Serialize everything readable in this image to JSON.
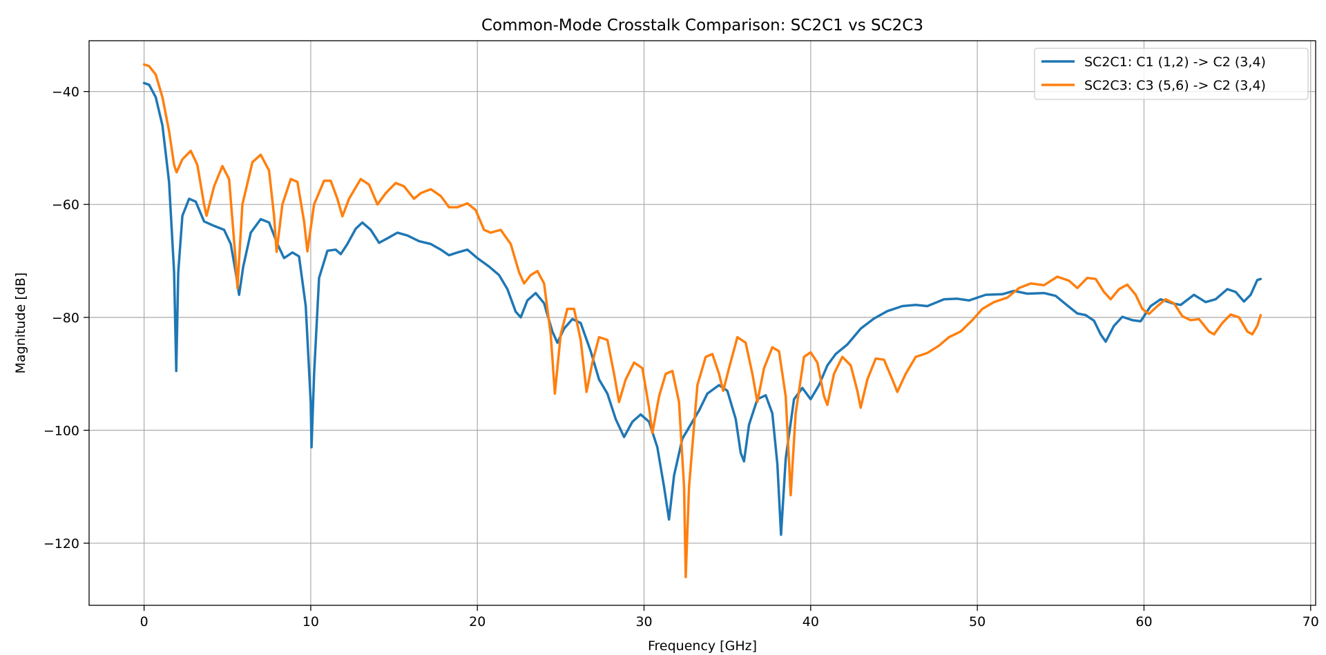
{
  "chart_data": {
    "type": "line",
    "title": "Common-Mode Crosstalk Comparison: SC2C1 vs SC2C3",
    "xlabel": "Frequency [GHz]",
    "ylabel": "Magnitude [dB]",
    "xlim": [
      -3.3,
      70.3
    ],
    "ylim": [
      -131,
      -31
    ],
    "xticks": [
      0,
      10,
      20,
      30,
      40,
      50,
      60,
      70
    ],
    "yticks": [
      -40,
      -60,
      -80,
      -100,
      -120
    ],
    "grid": true,
    "legend_position": "top-right",
    "series": [
      {
        "name": "SC2C1: C1 (1,2) -> C2 (3,4)",
        "color": "#1f77b4",
        "points": [
          [
            0,
            -38.5
          ],
          [
            0.3,
            -38.8
          ],
          [
            0.7,
            -41
          ],
          [
            1.1,
            -46
          ],
          [
            1.5,
            -56
          ],
          [
            1.8,
            -72
          ],
          [
            1.93,
            -89.5
          ],
          [
            2.05,
            -72
          ],
          [
            2.3,
            -62
          ],
          [
            2.7,
            -59
          ],
          [
            3.1,
            -59.5
          ],
          [
            3.6,
            -63
          ],
          [
            4.2,
            -63.8
          ],
          [
            4.8,
            -64.5
          ],
          [
            5.2,
            -67
          ],
          [
            5.5,
            -72
          ],
          [
            5.7,
            -76
          ],
          [
            5.95,
            -71
          ],
          [
            6.4,
            -65
          ],
          [
            7.0,
            -62.6
          ],
          [
            7.5,
            -63.2
          ],
          [
            8.0,
            -67
          ],
          [
            8.4,
            -69.5
          ],
          [
            8.9,
            -68.5
          ],
          [
            9.3,
            -69.2
          ],
          [
            9.7,
            -78
          ],
          [
            10.0,
            -95
          ],
          [
            10.05,
            -103
          ],
          [
            10.2,
            -90
          ],
          [
            10.5,
            -73
          ],
          [
            11,
            -68.2
          ],
          [
            11.5,
            -68
          ],
          [
            11.8,
            -68.8
          ],
          [
            12.2,
            -67
          ],
          [
            12.7,
            -64.3
          ],
          [
            13.1,
            -63.2
          ],
          [
            13.6,
            -64.5
          ],
          [
            14.1,
            -66.8
          ],
          [
            14.6,
            -66
          ],
          [
            15.2,
            -65
          ],
          [
            15.8,
            -65.5
          ],
          [
            16.5,
            -66.5
          ],
          [
            17.2,
            -67
          ],
          [
            17.8,
            -68
          ],
          [
            18.3,
            -69
          ],
          [
            18.8,
            -68.5
          ],
          [
            19.4,
            -68
          ],
          [
            20,
            -69.5
          ],
          [
            20.7,
            -71
          ],
          [
            21.3,
            -72.5
          ],
          [
            21.8,
            -75
          ],
          [
            22.3,
            -79
          ],
          [
            22.6,
            -80
          ],
          [
            23.0,
            -77
          ],
          [
            23.5,
            -75.7
          ],
          [
            24.0,
            -77.5
          ],
          [
            24.5,
            -82.5
          ],
          [
            24.8,
            -84.5
          ],
          [
            25.2,
            -82
          ],
          [
            25.7,
            -80.3
          ],
          [
            26.2,
            -81
          ],
          [
            26.8,
            -86
          ],
          [
            27.3,
            -91
          ],
          [
            27.8,
            -93.5
          ],
          [
            28.3,
            -98
          ],
          [
            28.8,
            -101.2
          ],
          [
            29.3,
            -98.5
          ],
          [
            29.8,
            -97.2
          ],
          [
            30.3,
            -98.5
          ],
          [
            30.8,
            -103
          ],
          [
            31.2,
            -110
          ],
          [
            31.5,
            -115.8
          ],
          [
            31.8,
            -108
          ],
          [
            32.3,
            -101.5
          ],
          [
            32.8,
            -99
          ],
          [
            33.3,
            -96.5
          ],
          [
            33.8,
            -93.5
          ],
          [
            34.5,
            -92
          ],
          [
            35.0,
            -93
          ],
          [
            35.5,
            -98
          ],
          [
            35.8,
            -104
          ],
          [
            36.0,
            -105.5
          ],
          [
            36.3,
            -99
          ],
          [
            36.8,
            -94.5
          ],
          [
            37.3,
            -93.8
          ],
          [
            37.7,
            -97
          ],
          [
            38.0,
            -106
          ],
          [
            38.22,
            -118.5
          ],
          [
            38.5,
            -105
          ],
          [
            39.0,
            -94.5
          ],
          [
            39.5,
            -92.5
          ],
          [
            40.0,
            -94.5
          ],
          [
            40.5,
            -92
          ],
          [
            41.0,
            -88.5
          ],
          [
            41.5,
            -86.5
          ],
          [
            42.2,
            -84.8
          ],
          [
            43,
            -82
          ],
          [
            43.8,
            -80.2
          ],
          [
            44.6,
            -78.9
          ],
          [
            45.5,
            -78
          ],
          [
            46.3,
            -77.8
          ],
          [
            47,
            -78
          ],
          [
            48,
            -76.8
          ],
          [
            48.8,
            -76.7
          ],
          [
            49.5,
            -77
          ],
          [
            50.5,
            -76
          ],
          [
            51.5,
            -75.9
          ],
          [
            52.2,
            -75.3
          ],
          [
            53,
            -75.8
          ],
          [
            54,
            -75.7
          ],
          [
            54.7,
            -76.2
          ],
          [
            55.4,
            -77.9
          ],
          [
            56,
            -79.3
          ],
          [
            56.5,
            -79.6
          ],
          [
            57,
            -80.6
          ],
          [
            57.4,
            -83
          ],
          [
            57.7,
            -84.3
          ],
          [
            58.2,
            -81.5
          ],
          [
            58.7,
            -79.9
          ],
          [
            59.3,
            -80.5
          ],
          [
            59.8,
            -80.7
          ],
          [
            60.4,
            -78
          ],
          [
            61,
            -76.8
          ],
          [
            61.7,
            -77.5
          ],
          [
            62.2,
            -77.8
          ],
          [
            63,
            -76
          ],
          [
            63.7,
            -77.3
          ],
          [
            64.3,
            -76.8
          ],
          [
            65,
            -75
          ],
          [
            65.5,
            -75.5
          ],
          [
            66,
            -77.2
          ],
          [
            66.4,
            -76
          ],
          [
            66.8,
            -73.4
          ],
          [
            67,
            -73.2
          ]
        ]
      },
      {
        "name": "SC2C3: C3 (5,6) -> C2 (3,4)",
        "color": "#ff7f0e",
        "points": [
          [
            0,
            -35.2
          ],
          [
            0.3,
            -35.5
          ],
          [
            0.7,
            -37
          ],
          [
            1.1,
            -41
          ],
          [
            1.5,
            -47
          ],
          [
            1.8,
            -53
          ],
          [
            1.95,
            -54.3
          ],
          [
            2.3,
            -52
          ],
          [
            2.8,
            -50.5
          ],
          [
            3.2,
            -53
          ],
          [
            3.6,
            -60
          ],
          [
            3.75,
            -62
          ],
          [
            4.2,
            -56.8
          ],
          [
            4.7,
            -53.2
          ],
          [
            5.1,
            -55.5
          ],
          [
            5.5,
            -70
          ],
          [
            5.6,
            -74.8
          ],
          [
            5.9,
            -60
          ],
          [
            6.5,
            -52.5
          ],
          [
            7.0,
            -51.2
          ],
          [
            7.5,
            -54
          ],
          [
            7.8,
            -62
          ],
          [
            7.95,
            -68.4
          ],
          [
            8.3,
            -60
          ],
          [
            8.8,
            -55.5
          ],
          [
            9.2,
            -56
          ],
          [
            9.6,
            -63
          ],
          [
            9.8,
            -68.3
          ],
          [
            10.2,
            -60
          ],
          [
            10.8,
            -55.8
          ],
          [
            11.2,
            -55.8
          ],
          [
            11.6,
            -59
          ],
          [
            11.9,
            -62.1
          ],
          [
            12.3,
            -59
          ],
          [
            13.0,
            -55.5
          ],
          [
            13.5,
            -56.5
          ],
          [
            14.0,
            -60
          ],
          [
            14.5,
            -58
          ],
          [
            15.1,
            -56.2
          ],
          [
            15.6,
            -56.8
          ],
          [
            16.2,
            -59
          ],
          [
            16.6,
            -58
          ],
          [
            17.2,
            -57.3
          ],
          [
            17.8,
            -58.5
          ],
          [
            18.3,
            -60.5
          ],
          [
            18.8,
            -60.5
          ],
          [
            19.4,
            -59.8
          ],
          [
            19.9,
            -61
          ],
          [
            20.4,
            -64.5
          ],
          [
            20.8,
            -65
          ],
          [
            21.4,
            -64.5
          ],
          [
            22.0,
            -67
          ],
          [
            22.5,
            -72
          ],
          [
            22.8,
            -74
          ],
          [
            23.2,
            -72.5
          ],
          [
            23.6,
            -71.8
          ],
          [
            24.0,
            -74
          ],
          [
            24.4,
            -83
          ],
          [
            24.65,
            -93.5
          ],
          [
            25.0,
            -83
          ],
          [
            25.4,
            -78.5
          ],
          [
            25.8,
            -78.5
          ],
          [
            26.2,
            -84
          ],
          [
            26.55,
            -93.2
          ],
          [
            26.9,
            -88
          ],
          [
            27.3,
            -83.5
          ],
          [
            27.8,
            -84
          ],
          [
            28.2,
            -90
          ],
          [
            28.5,
            -95
          ],
          [
            28.9,
            -91
          ],
          [
            29.4,
            -88
          ],
          [
            29.9,
            -89
          ],
          [
            30.3,
            -96
          ],
          [
            30.5,
            -100.5
          ],
          [
            30.9,
            -94
          ],
          [
            31.3,
            -90
          ],
          [
            31.7,
            -89.5
          ],
          [
            32.1,
            -95
          ],
          [
            32.4,
            -110
          ],
          [
            32.5,
            -126
          ],
          [
            32.7,
            -110
          ],
          [
            33.2,
            -92
          ],
          [
            33.7,
            -87
          ],
          [
            34.1,
            -86.5
          ],
          [
            34.5,
            -90
          ],
          [
            34.75,
            -93
          ],
          [
            35.1,
            -89
          ],
          [
            35.6,
            -83.5
          ],
          [
            36.1,
            -84.5
          ],
          [
            36.5,
            -90
          ],
          [
            36.8,
            -95
          ],
          [
            37.2,
            -89
          ],
          [
            37.7,
            -85.3
          ],
          [
            38.1,
            -86
          ],
          [
            38.5,
            -94
          ],
          [
            38.8,
            -111.5
          ],
          [
            39.1,
            -97
          ],
          [
            39.6,
            -87
          ],
          [
            40.0,
            -86.2
          ],
          [
            40.4,
            -88
          ],
          [
            40.8,
            -94
          ],
          [
            41.0,
            -95.5
          ],
          [
            41.4,
            -90
          ],
          [
            41.9,
            -87
          ],
          [
            42.4,
            -88.5
          ],
          [
            42.8,
            -93
          ],
          [
            43.0,
            -96
          ],
          [
            43.4,
            -91
          ],
          [
            43.9,
            -87.3
          ],
          [
            44.4,
            -87.5
          ],
          [
            44.9,
            -91
          ],
          [
            45.2,
            -93.2
          ],
          [
            45.7,
            -90
          ],
          [
            46.3,
            -87
          ],
          [
            47,
            -86.3
          ],
          [
            47.7,
            -85
          ],
          [
            48.3,
            -83.5
          ],
          [
            49,
            -82.5
          ],
          [
            49.7,
            -80.5
          ],
          [
            50.3,
            -78.5
          ],
          [
            51,
            -77.3
          ],
          [
            51.8,
            -76.5
          ],
          [
            52.5,
            -74.8
          ],
          [
            53.2,
            -74
          ],
          [
            54,
            -74.3
          ],
          [
            54.8,
            -72.8
          ],
          [
            55.5,
            -73.5
          ],
          [
            56,
            -74.8
          ],
          [
            56.6,
            -73
          ],
          [
            57.1,
            -73.2
          ],
          [
            57.6,
            -75.5
          ],
          [
            58.0,
            -76.8
          ],
          [
            58.5,
            -75
          ],
          [
            59.0,
            -74.2
          ],
          [
            59.5,
            -76
          ],
          [
            59.9,
            -78.5
          ],
          [
            60.3,
            -79.4
          ],
          [
            60.8,
            -78
          ],
          [
            61.3,
            -76.8
          ],
          [
            61.8,
            -77.5
          ],
          [
            62.3,
            -79.8
          ],
          [
            62.8,
            -80.5
          ],
          [
            63.3,
            -80.3
          ],
          [
            63.9,
            -82.5
          ],
          [
            64.2,
            -83
          ],
          [
            64.7,
            -81
          ],
          [
            65.2,
            -79.5
          ],
          [
            65.7,
            -80
          ],
          [
            66.2,
            -82.5
          ],
          [
            66.5,
            -83
          ],
          [
            66.8,
            -81.5
          ],
          [
            67,
            -79.6
          ]
        ]
      }
    ]
  }
}
